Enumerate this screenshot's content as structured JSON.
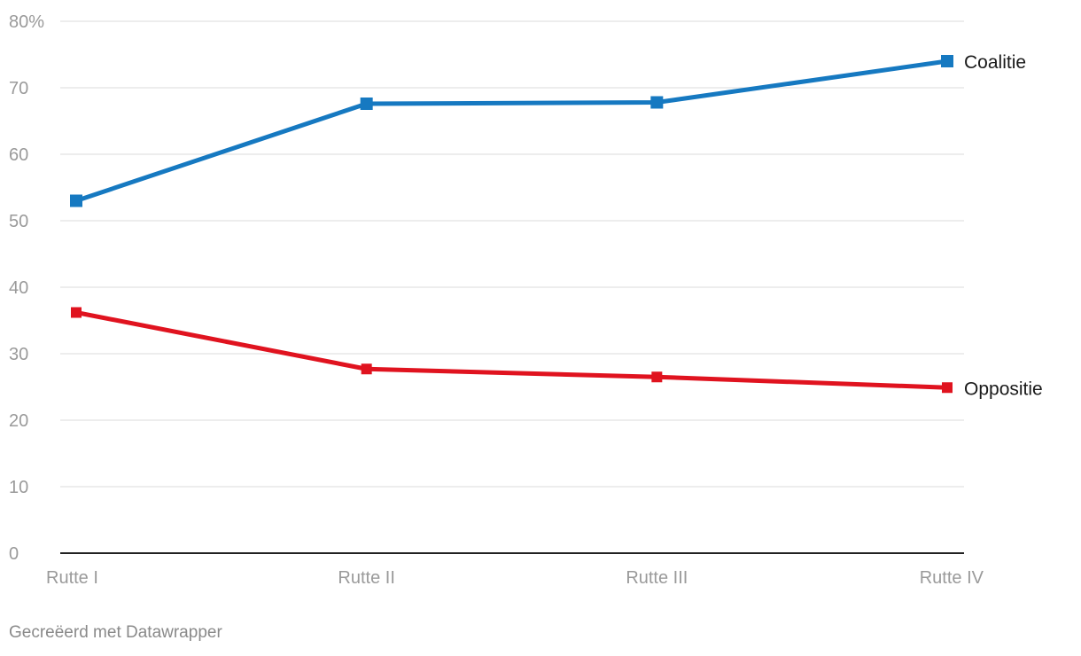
{
  "chart_data": {
    "type": "line",
    "categories": [
      "Rutte I",
      "Rutte II",
      "Rutte III",
      "Rutte IV"
    ],
    "series": [
      {
        "name": "Coalitie",
        "values": [
          53,
          67.6,
          67.8,
          74
        ],
        "color": "#1679c1"
      },
      {
        "name": "Oppositie",
        "values": [
          36.2,
          27.7,
          26.5,
          24.9
        ],
        "color": "#e0131f"
      }
    ],
    "title": "",
    "xlabel": "",
    "ylabel": "",
    "ylim": [
      0,
      80
    ],
    "yticks": [
      "0",
      "10",
      "20",
      "30",
      "40",
      "50",
      "60",
      "70",
      "80%"
    ],
    "grid": true,
    "legend": "inline labels at line ends (right)"
  },
  "footer": {
    "credit": "Gecreëerd met Datawrapper"
  }
}
